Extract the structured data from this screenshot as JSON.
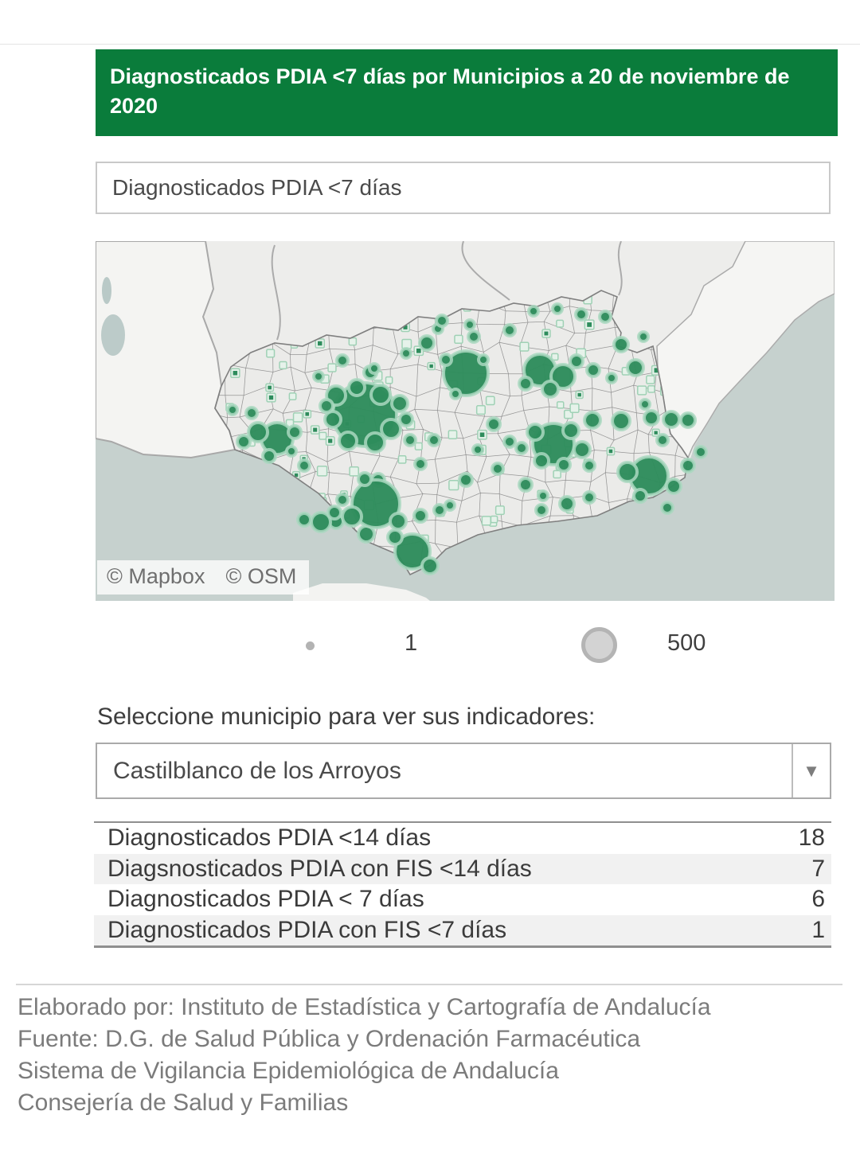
{
  "header": {
    "title": "Diagnosticados PDIA <7 días por Municipios a 20 de noviembre de 2020",
    "bg_color": "#0a7c3b"
  },
  "measure_box": {
    "label": "Diagnosticados PDIA <7 días"
  },
  "map": {
    "attribution": {
      "mapbox": "© Mapbox",
      "osm": "© OSM"
    },
    "colors": {
      "sea": "#c6d1ce",
      "land": "#ededeb",
      "region": "#ebebe9",
      "outside_region": "#f5f5f3",
      "bubble": "#2e8c5c",
      "bubble_halo": "#a9d8bf"
    },
    "bubbles": [
      [
        338,
        218,
        40
      ],
      [
        302,
        194,
        12
      ],
      [
        328,
        184,
        10
      ],
      [
        358,
        193,
        12
      ],
      [
        382,
        204,
        10
      ],
      [
        298,
        224,
        10
      ],
      [
        371,
        236,
        12
      ],
      [
        351,
        253,
        12
      ],
      [
        317,
        251,
        11
      ],
      [
        290,
        207,
        8
      ],
      [
        390,
        224,
        8
      ],
      [
        345,
        165,
        8
      ],
      [
        395,
        250,
        7
      ],
      [
        228,
        248,
        20
      ],
      [
        204,
        240,
        12
      ],
      [
        250,
        240,
        8
      ],
      [
        186,
        252,
        8
      ],
      [
        218,
        270,
        8
      ],
      [
        246,
        264,
        6
      ],
      [
        172,
        212,
        6
      ],
      [
        196,
        216,
        7
      ],
      [
        262,
        282,
        7
      ],
      [
        398,
        390,
        22
      ],
      [
        420,
        408,
        10
      ],
      [
        376,
        372,
        9
      ],
      [
        340,
        368,
        10
      ],
      [
        302,
        352,
        9
      ],
      [
        283,
        353,
        12
      ],
      [
        262,
        350,
        8
      ],
      [
        310,
        325,
        7
      ],
      [
        355,
        300,
        8
      ],
      [
        352,
        330,
        30
      ],
      [
        322,
        346,
        12
      ],
      [
        380,
        352,
        10
      ],
      [
        338,
        299,
        8
      ],
      [
        300,
        341,
        8
      ],
      [
        408,
        345,
        8
      ],
      [
        432,
        338,
        7
      ],
      [
        465,
        166,
        28
      ],
      [
        440,
        149,
        7
      ],
      [
        487,
        149,
        6
      ],
      [
        452,
        192,
        6
      ],
      [
        416,
        128,
        9
      ],
      [
        390,
        141,
        6
      ],
      [
        430,
        110,
        6
      ],
      [
        475,
        120,
        7
      ],
      [
        558,
        162,
        20
      ],
      [
        587,
        170,
        15
      ],
      [
        571,
        186,
        10
      ],
      [
        604,
        151,
        8
      ],
      [
        540,
        179,
        8
      ],
      [
        625,
        162,
        8
      ],
      [
        648,
        172,
        6
      ],
      [
        660,
        130,
        9
      ],
      [
        688,
        120,
        6
      ],
      [
        678,
        159,
        10
      ],
      [
        640,
        95,
        7
      ],
      [
        610,
        92,
        7
      ],
      [
        580,
        85,
        6
      ],
      [
        550,
        88,
        6
      ],
      [
        575,
        255,
        26
      ],
      [
        552,
        240,
        10
      ],
      [
        597,
        238,
        10
      ],
      [
        611,
        262,
        10
      ],
      [
        560,
        276,
        9
      ],
      [
        588,
        281,
        8
      ],
      [
        535,
        260,
        7
      ],
      [
        620,
        282,
        7
      ],
      [
        592,
        330,
        9
      ],
      [
        620,
        322,
        7
      ],
      [
        560,
        338,
        7
      ],
      [
        624,
        225,
        10
      ],
      [
        660,
        226,
        11
      ],
      [
        698,
        222,
        9
      ],
      [
        723,
        224,
        10
      ],
      [
        744,
        225,
        9
      ],
      [
        712,
        250,
        7
      ],
      [
        690,
        205,
        6
      ],
      [
        695,
        295,
        24
      ],
      [
        668,
        290,
        12
      ],
      [
        726,
        308,
        9
      ],
      [
        684,
        320,
        8
      ],
      [
        744,
        282,
        8
      ],
      [
        760,
        265,
        7
      ],
      [
        718,
        335,
        7
      ],
      [
        310,
        150,
        7
      ],
      [
        350,
        160,
        6
      ],
      [
        280,
        170,
        6
      ],
      [
        435,
        100,
        7
      ],
      [
        470,
        105,
        6
      ],
      [
        520,
        112,
        7
      ],
      [
        500,
        230,
        8
      ],
      [
        520,
        252,
        7
      ],
      [
        480,
        262,
        6
      ],
      [
        505,
        286,
        7
      ],
      [
        465,
        300,
        8
      ],
      [
        445,
        332,
        6
      ],
      [
        540,
        306,
        8
      ],
      [
        562,
        320,
        6
      ],
      [
        425,
        250,
        7
      ],
      [
        408,
        280,
        7
      ]
    ]
  },
  "legend": {
    "min_label": "1",
    "max_label": "500"
  },
  "selector": {
    "label": "Seleccione municipio para ver sus indicadores:",
    "selected": "Castilblanco de los Arroyos"
  },
  "indicators": {
    "rows": [
      {
        "label": "Diagnosticados PDIA <14 días",
        "value": "18"
      },
      {
        "label": "Diagsnosticados PDIA con FIS <14 días",
        "value": "7"
      },
      {
        "label": "Diagnosticados PDIA < 7 días",
        "value": "6"
      },
      {
        "label": "Diagnosticados PDIA con FIS <7 días",
        "value": "1"
      }
    ]
  },
  "footer": {
    "lines": [
      "Elaborado por: Instituto de Estadística y Cartografía de Andalucía",
      "Fuente: D.G. de Salud Pública y Ordenación Farmacéutica",
      "Sistema de Vigilancia Epidemiológica de Andalucía",
      "Consejería de Salud y Familias"
    ]
  }
}
